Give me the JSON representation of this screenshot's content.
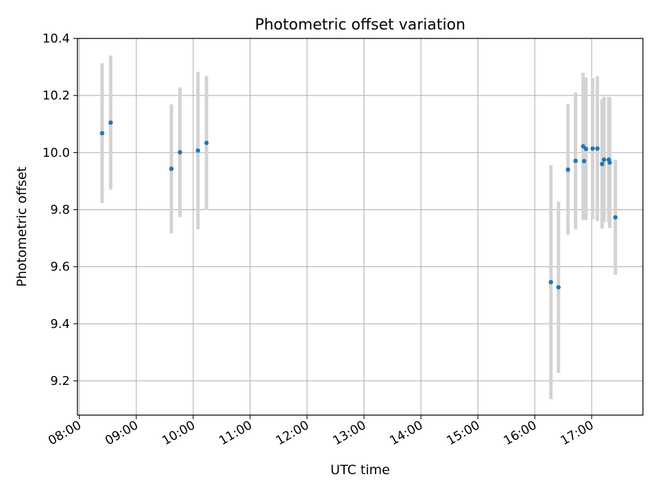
{
  "chart_data": {
    "type": "scatter",
    "title": "Photometric offset variation",
    "xlabel": "UTC time",
    "ylabel": "Photometric offset",
    "xlim": [
      "07:58",
      "17:54"
    ],
    "ylim": [
      9.08,
      10.4
    ],
    "x_ticks": [
      "08:00",
      "09:00",
      "10:00",
      "11:00",
      "12:00",
      "13:00",
      "14:00",
      "15:00",
      "16:00",
      "17:00"
    ],
    "y_ticks": [
      "9.2",
      "9.4",
      "9.6",
      "9.8",
      "10.0",
      "10.2",
      "10.4"
    ],
    "grid": true,
    "point_color": "#1f77b4",
    "errorbar_color": "#d3d3d3",
    "points": [
      {
        "x": "08:24",
        "y": 10.068,
        "err": 0.245
      },
      {
        "x": "08:33",
        "y": 10.105,
        "err": 0.235
      },
      {
        "x": "09:37",
        "y": 9.943,
        "err": 0.226
      },
      {
        "x": "09:46",
        "y": 10.001,
        "err": 0.227
      },
      {
        "x": "10:05",
        "y": 10.007,
        "err": 0.276
      },
      {
        "x": "10:14",
        "y": 10.034,
        "err": 0.235
      },
      {
        "x": "16:17",
        "y": 9.546,
        "err": 0.41
      },
      {
        "x": "16:25",
        "y": 9.528,
        "err": 0.3
      },
      {
        "x": "16:35",
        "y": 9.94,
        "err": 0.229
      },
      {
        "x": "16:43",
        "y": 9.971,
        "err": 0.24
      },
      {
        "x": "16:51",
        "y": 10.022,
        "err": 0.258
      },
      {
        "x": "16:52",
        "y": 9.97,
        "err": 0.2
      },
      {
        "x": "16:54",
        "y": 10.013,
        "err": 0.25
      },
      {
        "x": "17:01",
        "y": 10.014,
        "err": 0.247
      },
      {
        "x": "17:06",
        "y": 10.014,
        "err": 0.254
      },
      {
        "x": "17:11",
        "y": 9.96,
        "err": 0.226
      },
      {
        "x": "17:13",
        "y": 9.975,
        "err": 0.22
      },
      {
        "x": "17:18",
        "y": 9.975,
        "err": 0.22
      },
      {
        "x": "17:19",
        "y": 9.965,
        "err": 0.229
      },
      {
        "x": "17:25",
        "y": 9.773,
        "err": 0.202
      }
    ]
  }
}
